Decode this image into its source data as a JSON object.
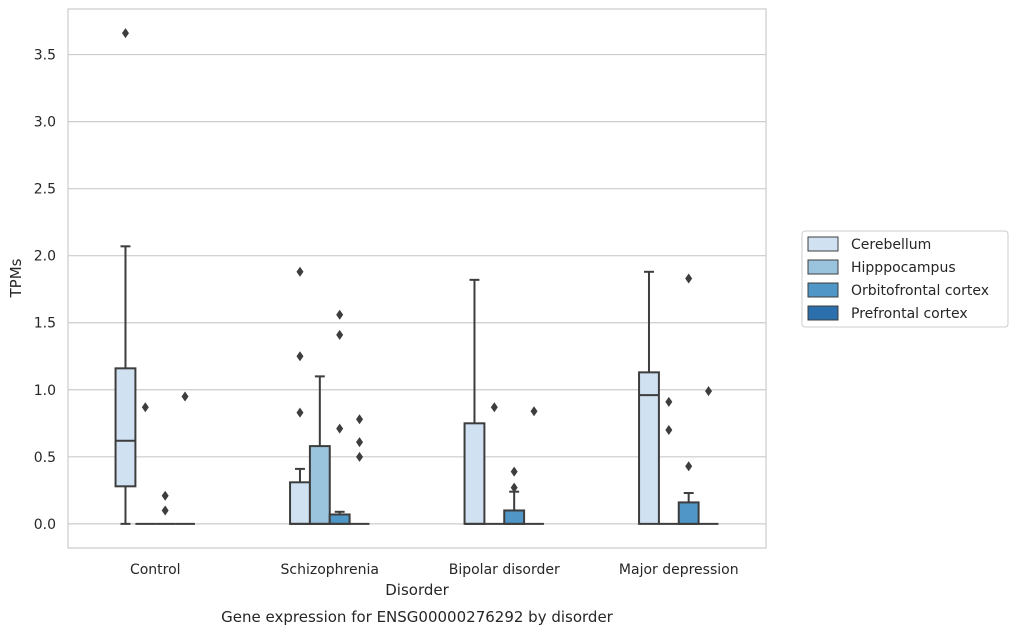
{
  "chart_data": {
    "type": "box",
    "xlabel": "Disorder",
    "ylabel": "TPMs",
    "caption": "Gene expression for ENSG00000276292 by disorder",
    "categories": [
      "Control",
      "Schizophrenia",
      "Bipolar disorder",
      "Major depression"
    ],
    "ylim": [
      -0.18,
      3.84
    ],
    "yticks": [
      0.0,
      0.5,
      1.0,
      1.5,
      2.0,
      2.5,
      3.0,
      3.5
    ],
    "ytick_labels": [
      "0.0",
      "0.5",
      "1.0",
      "1.5",
      "2.0",
      "2.5",
      "3.0",
      "3.5"
    ],
    "grid": "horizontal",
    "legend_position": "right",
    "series": [
      {
        "name": "Cerebellum",
        "color": "#d0e1f2",
        "boxes": [
          {
            "q1": 0.28,
            "median": 0.62,
            "q3": 1.16,
            "whislo": 0.0,
            "whishi": 2.07,
            "fliers": [
              3.66
            ]
          },
          {
            "q1": 0.0,
            "median": 0.0,
            "q3": 0.31,
            "whislo": 0.0,
            "whishi": 0.41,
            "fliers": [
              0.83,
              1.25,
              1.88
            ]
          },
          {
            "q1": 0.0,
            "median": 0.0,
            "q3": 0.75,
            "whislo": 0.0,
            "whishi": 1.82,
            "fliers": []
          },
          {
            "q1": 0.0,
            "median": 0.96,
            "q3": 1.13,
            "whislo": 0.0,
            "whishi": 1.88,
            "fliers": []
          }
        ]
      },
      {
        "name": "Hipppocampus",
        "color": "#9ac3de",
        "boxes": [
          {
            "q1": 0.0,
            "median": 0.0,
            "q3": 0.0,
            "whislo": 0.0,
            "whishi": 0.0,
            "fliers": [
              0.87
            ]
          },
          {
            "q1": 0.0,
            "median": 0.0,
            "q3": 0.58,
            "whislo": 0.0,
            "whishi": 1.1,
            "fliers": []
          },
          {
            "q1": 0.0,
            "median": 0.0,
            "q3": 0.0,
            "whislo": 0.0,
            "whishi": 0.0,
            "fliers": [
              0.87
            ]
          },
          {
            "q1": 0.0,
            "median": 0.0,
            "q3": 0.0,
            "whislo": 0.0,
            "whishi": 0.0,
            "fliers": [
              0.7,
              0.91
            ]
          }
        ]
      },
      {
        "name": "Orbitofrontal cortex",
        "color": "#5096c7",
        "boxes": [
          {
            "q1": 0.0,
            "median": 0.0,
            "q3": 0.0,
            "whislo": 0.0,
            "whishi": 0.0,
            "fliers": [
              0.1,
              0.21
            ]
          },
          {
            "q1": 0.0,
            "median": 0.0,
            "q3": 0.07,
            "whislo": 0.0,
            "whishi": 0.09,
            "fliers": [
              0.71,
              1.41,
              1.56
            ]
          },
          {
            "q1": 0.0,
            "median": 0.0,
            "q3": 0.1,
            "whislo": 0.0,
            "whishi": 0.24,
            "fliers": [
              0.27,
              0.39
            ]
          },
          {
            "q1": 0.0,
            "median": 0.0,
            "q3": 0.16,
            "whislo": 0.0,
            "whishi": 0.23,
            "fliers": [
              0.43,
              1.83
            ]
          }
        ]
      },
      {
        "name": "Prefrontal cortex",
        "color": "#2b6fac",
        "boxes": [
          {
            "q1": 0.0,
            "median": 0.0,
            "q3": 0.0,
            "whislo": 0.0,
            "whishi": 0.0,
            "fliers": [
              0.95
            ]
          },
          {
            "q1": 0.0,
            "median": 0.0,
            "q3": 0.0,
            "whislo": 0.0,
            "whishi": 0.0,
            "fliers": [
              0.5,
              0.61,
              0.78
            ]
          },
          {
            "q1": 0.0,
            "median": 0.0,
            "q3": 0.0,
            "whislo": 0.0,
            "whishi": 0.0,
            "fliers": [
              0.84
            ]
          },
          {
            "q1": 0.0,
            "median": 0.0,
            "q3": 0.0,
            "whislo": 0.0,
            "whishi": 0.0,
            "fliers": [
              0.99
            ]
          }
        ]
      }
    ]
  }
}
